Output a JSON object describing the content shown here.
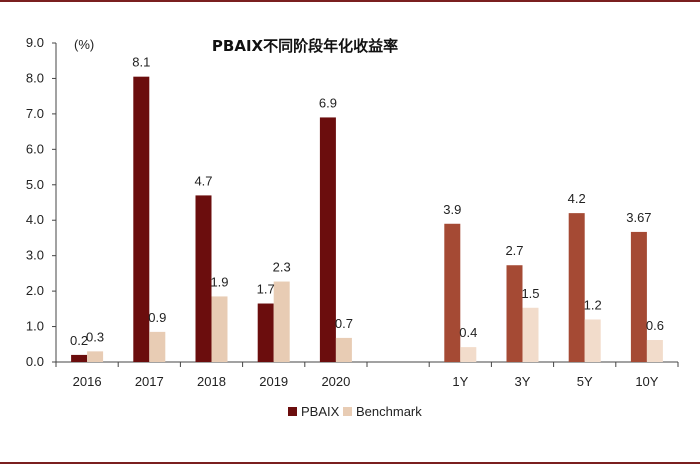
{
  "chart_data": {
    "type": "bar",
    "title": "PBAIX不同阶段年化收益率",
    "unit_label": "(%)",
    "ylim": [
      0,
      9
    ],
    "yticks": [
      "0.0",
      "1.0",
      "2.0",
      "3.0",
      "4.0",
      "5.0",
      "6.0",
      "7.0",
      "8.0",
      "9.0"
    ],
    "grid": false,
    "legend_position": "bottom-center",
    "categories": [
      "2016",
      "2017",
      "2018",
      "2019",
      "2020",
      "",
      "1Y",
      "3Y",
      "5Y",
      "10Y"
    ],
    "series": [
      {
        "name": "PBAIX",
        "values": [
          0.2,
          8.05,
          4.7,
          1.65,
          6.9,
          null,
          3.9,
          2.73,
          4.2,
          3.67
        ],
        "labels": [
          "0.2",
          "8.1",
          "4.7",
          "1.7",
          "6.9",
          "",
          "3.9",
          "2.7",
          "4.2",
          "3.67"
        ],
        "colors": [
          "#6b0d0d",
          "#6b0d0d",
          "#6b0d0d",
          "#6b0d0d",
          "#6b0d0d",
          "",
          "#a54a34",
          "#a54a34",
          "#a54a34",
          "#a54a34"
        ]
      },
      {
        "name": "Benchmark",
        "values": [
          0.3,
          0.85,
          1.85,
          2.27,
          0.68,
          null,
          0.42,
          1.53,
          1.2,
          0.62
        ],
        "labels": [
          "0.3",
          "0.9",
          "1.9",
          "2.3",
          "0.7",
          "",
          "0.4",
          "1.5",
          "1.2",
          "0.6"
        ],
        "colors": [
          "#e8ccb4",
          "#e8ccb4",
          "#e8ccb4",
          "#e8ccb4",
          "#e8ccb4",
          "",
          "#f2dccb",
          "#f2dccb",
          "#f2dccb",
          "#f2dccb"
        ]
      }
    ],
    "legend": [
      {
        "name": "PBAIX",
        "color": "#6b0d0d"
      },
      {
        "name": "Benchmark",
        "color": "#e8ccb4"
      }
    ]
  }
}
